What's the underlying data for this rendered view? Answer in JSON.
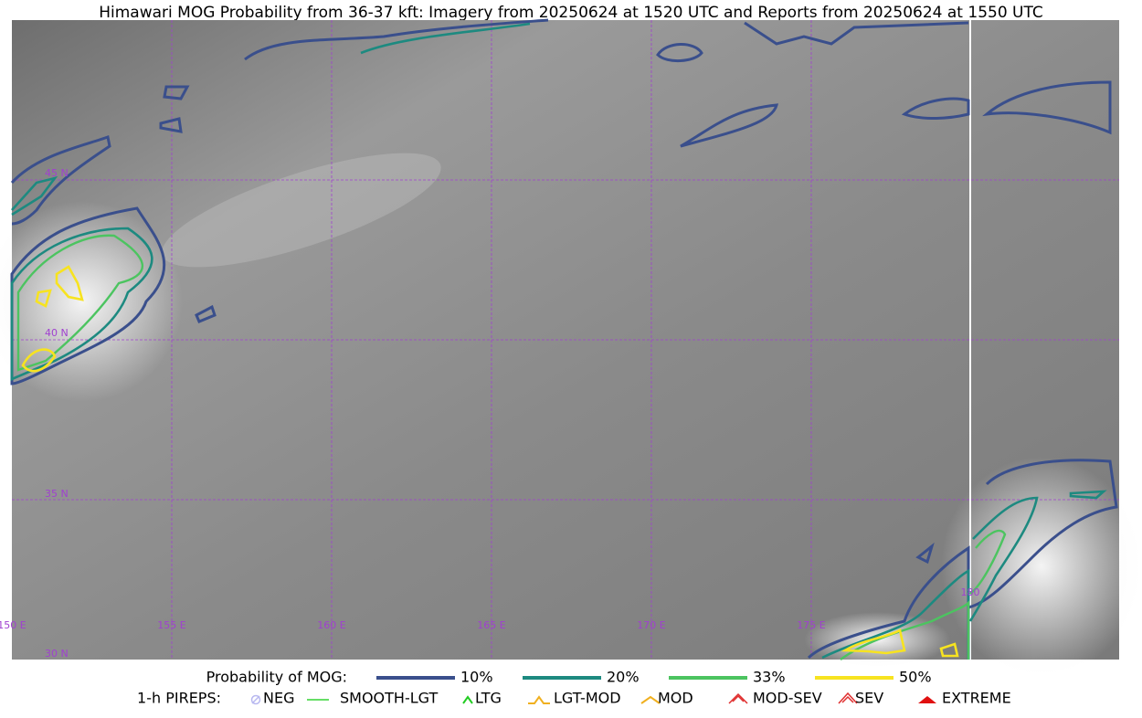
{
  "header": {
    "title": "Himawari MOG Probability from 36-37 kft: Imagery from 20250624 at 1520 UTC and Reports from 20250624 at 1550 UTC"
  },
  "map": {
    "lat_labels": [
      "45 N",
      "40 N",
      "35 N",
      "30 N"
    ],
    "lon_labels": [
      "150 E",
      "155 E",
      "160 E",
      "165 E",
      "170 E",
      "175 E",
      "180"
    ]
  },
  "legend": {
    "probability_title": "Probability of MOG:",
    "probability_items": [
      {
        "label": "10%",
        "color": "#3a4f8c"
      },
      {
        "label": "20%",
        "color": "#1d8a80"
      },
      {
        "label": "33%",
        "color": "#4cc460"
      },
      {
        "label": "50%",
        "color": "#f7e320"
      }
    ],
    "pirep_title": "1-h PIREPS:",
    "pirep_items": [
      {
        "label": "NEG",
        "color": "#b8b8f0"
      },
      {
        "label": "SMOOTH-LGT",
        "color": "#33d433"
      },
      {
        "label": "LTG",
        "color": "#22cc22"
      },
      {
        "label": "LGT-MOD",
        "color": "#f0b020"
      },
      {
        "label": "MOD",
        "color": "#f0b020"
      },
      {
        "label": "MOD-SEV",
        "color": "#e03030"
      },
      {
        "label": "SEV",
        "color": "#e03030"
      },
      {
        "label": "EXTREME",
        "color": "#e01010"
      }
    ]
  }
}
